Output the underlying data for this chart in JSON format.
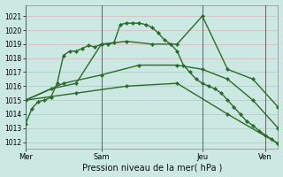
{
  "bg_color": "#cce8e2",
  "grid_color": "#c8d8c8",
  "line_color": "#2a6b2a",
  "marker": "D",
  "marker_size": 2.2,
  "title": "Pression niveau de la mer( hPa )",
  "ylim": [
    1011.5,
    1021.8
  ],
  "yticks": [
    1012,
    1013,
    1014,
    1015,
    1016,
    1017,
    1018,
    1019,
    1020,
    1021
  ],
  "xlim": [
    0,
    60
  ],
  "vline_positions": [
    0,
    18,
    42,
    57
  ],
  "xtick_positions": [
    0,
    18,
    42,
    57
  ],
  "xtick_labels": [
    "Mer",
    "Sam",
    "Jeu",
    "Ven"
  ],
  "lines": [
    {
      "x": [
        0,
        1.5,
        3,
        4.5,
        6,
        7.5,
        9,
        10.5,
        12,
        13.5,
        15,
        16.5,
        18,
        19.5,
        21,
        22.5,
        24,
        25.5,
        27,
        28.5,
        30,
        31.5,
        33,
        34.5,
        36,
        37.5,
        39,
        40.5,
        42,
        43.5,
        45,
        46.5,
        48,
        49.5,
        51,
        52.5,
        54,
        55.5,
        57,
        58.5,
        60
      ],
      "y": [
        1013.3,
        1014.4,
        1014.9,
        1015.0,
        1015.2,
        1016.2,
        1018.2,
        1018.5,
        1018.5,
        1018.7,
        1018.9,
        1018.8,
        1019.0,
        1019.0,
        1019.1,
        1020.4,
        1020.5,
        1020.5,
        1020.5,
        1020.4,
        1020.2,
        1019.8,
        1019.3,
        1019.0,
        1018.5,
        1017.5,
        1017.0,
        1016.5,
        1016.2,
        1016.0,
        1015.8,
        1015.5,
        1015.0,
        1014.5,
        1014.0,
        1013.5,
        1013.2,
        1012.8,
        1012.5,
        1012.2,
        1011.9
      ],
      "dashed": false,
      "lw": 1.0
    },
    {
      "x": [
        0,
        6,
        12,
        18,
        24,
        30,
        36,
        42,
        48,
        54,
        60
      ],
      "y": [
        1015.0,
        1015.8,
        1016.2,
        1019.0,
        1019.2,
        1019.0,
        1019.0,
        1021.0,
        1017.2,
        1016.5,
        1014.5
      ],
      "dashed": false,
      "lw": 1.0
    },
    {
      "x": [
        0,
        9,
        18,
        27,
        36,
        42,
        48,
        54,
        60
      ],
      "y": [
        1015.0,
        1016.2,
        1016.8,
        1017.5,
        1017.5,
        1017.2,
        1016.5,
        1015.0,
        1013.0
      ],
      "dashed": false,
      "lw": 1.0
    },
    {
      "x": [
        0,
        12,
        24,
        36,
        48,
        60
      ],
      "y": [
        1015.0,
        1015.5,
        1016.0,
        1016.2,
        1014.0,
        1011.9
      ],
      "dashed": false,
      "lw": 1.0
    }
  ]
}
